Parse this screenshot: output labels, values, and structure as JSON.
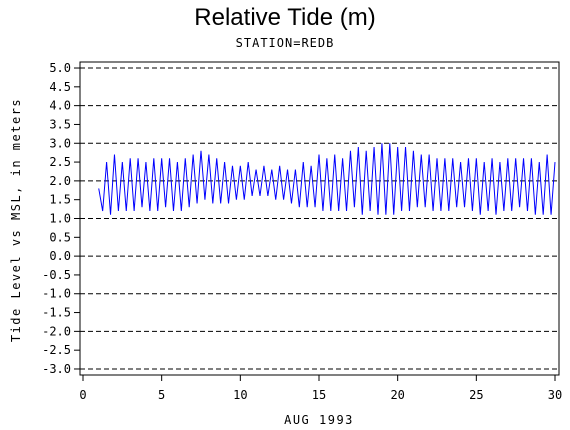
{
  "chart_data": {
    "type": "line",
    "title": "Relative Tide (m)",
    "subtitle": "STATION=REDB",
    "xlabel": "AUG 1993",
    "ylabel": "Tide Level vs MSL, in meters",
    "xlim": [
      0,
      30
    ],
    "ylim": [
      -3.0,
      5.0
    ],
    "x_ticks": [
      "0",
      "5",
      "10",
      "15",
      "20",
      "25",
      "30"
    ],
    "y_ticks": [
      "5.0",
      "4.5",
      "4.0",
      "3.5",
      "3.0",
      "2.5",
      "2.0",
      "1.5",
      "1.0",
      "0.5",
      "0.0",
      "-0.5",
      "-1.0",
      "-1.5",
      "-2.0",
      "-2.5",
      "-3.0"
    ],
    "grid": "horizontal dashed lines at 5.0, 4.0, 3.0, 2.0, 1.0, 0.0, -1.0, -2.0, -3.0",
    "series": [
      {
        "color": "#0000ff",
        "x": [
          1.0,
          1.25,
          1.5,
          1.75,
          2.0,
          2.25,
          2.5,
          2.75,
          3.0,
          3.25,
          3.5,
          3.75,
          4.0,
          4.25,
          4.5,
          4.75,
          5.0,
          5.25,
          5.5,
          5.75,
          6.0,
          6.25,
          6.5,
          6.75,
          7.0,
          7.25,
          7.5,
          7.75,
          8.0,
          8.25,
          8.5,
          8.75,
          9.0,
          9.25,
          9.5,
          9.75,
          10.0,
          10.25,
          10.5,
          10.75,
          11.0,
          11.25,
          11.5,
          11.75,
          12.0,
          12.25,
          12.5,
          12.75,
          13.0,
          13.25,
          13.5,
          13.75,
          14.0,
          14.25,
          14.5,
          14.75,
          15.0,
          15.25,
          15.5,
          15.75,
          16.0,
          16.25,
          16.5,
          16.75,
          17.0,
          17.25,
          17.5,
          17.75,
          18.0,
          18.25,
          18.5,
          18.75,
          19.0,
          19.25,
          19.5,
          19.75,
          20.0,
          20.25,
          20.5,
          20.75,
          21.0,
          21.25,
          21.5,
          21.75,
          22.0,
          22.25,
          22.5,
          22.75,
          23.0,
          23.25,
          23.5,
          23.75,
          24.0,
          24.25,
          24.5,
          24.75,
          25.0,
          25.25,
          25.5,
          25.75,
          26.0,
          26.25,
          26.5,
          26.75,
          27.0,
          27.25,
          27.5,
          27.75,
          28.0,
          28.25,
          28.5,
          28.75,
          29.0,
          29.25,
          29.5,
          29.75,
          30.0
        ],
        "y": [
          1.8,
          1.2,
          2.5,
          1.1,
          2.7,
          1.2,
          2.5,
          1.2,
          2.6,
          1.2,
          2.6,
          1.3,
          2.5,
          1.2,
          2.6,
          1.2,
          2.6,
          1.3,
          2.6,
          1.2,
          2.5,
          1.2,
          2.6,
          1.3,
          2.7,
          1.4,
          2.8,
          1.5,
          2.7,
          1.4,
          2.6,
          1.4,
          2.5,
          1.4,
          2.4,
          1.5,
          2.4,
          1.5,
          2.5,
          1.6,
          2.3,
          1.6,
          2.4,
          1.6,
          2.3,
          1.5,
          2.4,
          1.5,
          2.3,
          1.4,
          2.3,
          1.3,
          2.5,
          1.3,
          2.4,
          1.3,
          2.7,
          1.2,
          2.6,
          1.2,
          2.7,
          1.2,
          2.6,
          1.2,
          2.8,
          1.3,
          2.9,
          1.1,
          2.8,
          1.2,
          2.9,
          1.1,
          3.0,
          1.1,
          3.0,
          1.1,
          2.9,
          1.2,
          2.9,
          1.2,
          2.8,
          1.3,
          2.7,
          1.3,
          2.7,
          1.2,
          2.6,
          1.2,
          2.6,
          1.2,
          2.6,
          1.3,
          2.5,
          1.3,
          2.6,
          1.2,
          2.6,
          1.1,
          2.5,
          1.2,
          2.6,
          1.1,
          2.5,
          1.2,
          2.6,
          1.2,
          2.6,
          1.3,
          2.6,
          1.2,
          2.6,
          1.1,
          2.5,
          1.1,
          2.7,
          1.1,
          2.5
        ]
      }
    ]
  }
}
